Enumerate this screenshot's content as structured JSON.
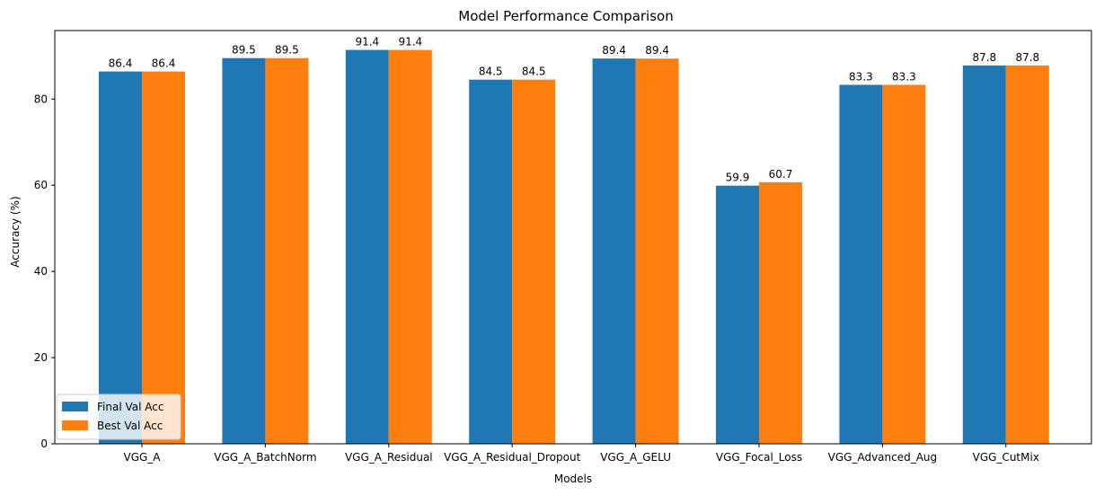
{
  "chart_data": {
    "type": "bar",
    "title": "Model Performance Comparison",
    "xlabel": "Models",
    "ylabel": "Accuracy (%)",
    "ylim": [
      0,
      95.9
    ],
    "yticks": [
      0,
      20,
      40,
      60,
      80
    ],
    "categories": [
      "VGG_A",
      "VGG_A_BatchNorm",
      "VGG_A_Residual",
      "VGG_A_Residual_Dropout",
      "VGG_A_GELU",
      "VGG_Focal_Loss",
      "VGG_Advanced_Aug",
      "VGG_CutMix"
    ],
    "series": [
      {
        "name": "Final Val Acc",
        "color": "#1f77b4",
        "values": [
          86.4,
          89.5,
          91.4,
          84.5,
          89.4,
          59.9,
          83.3,
          87.8
        ]
      },
      {
        "name": "Best Val Acc",
        "color": "#ff7f0e",
        "values": [
          86.4,
          89.5,
          91.4,
          84.5,
          89.4,
          60.7,
          83.3,
          87.8
        ]
      }
    ],
    "legend_position": "lower-left",
    "grid": false
  }
}
